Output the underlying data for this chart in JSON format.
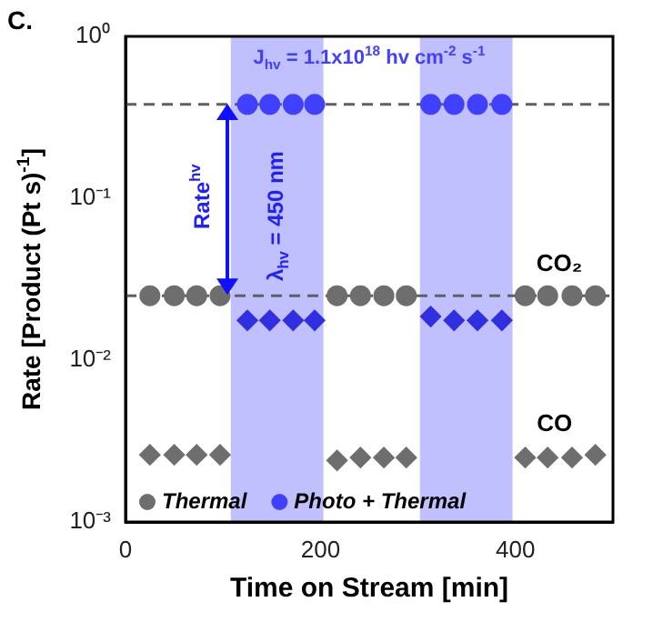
{
  "chart_data": {
    "type": "scatter",
    "title": "C.",
    "xlabel": "Time on Stream [min]",
    "ylabel": "Rate [Product (Pt s)$^{-1}$]",
    "xlim": [
      0,
      500
    ],
    "xticks": [
      0,
      200,
      400
    ],
    "ylim": [
      0.001,
      1
    ],
    "yticks": [
      {
        "value": 1,
        "label": "10⁰"
      },
      {
        "value": 0.1,
        "label": "10⁻¹"
      },
      {
        "value": 0.01,
        "label": "10⁻²"
      },
      {
        "value": 0.001,
        "label": "10⁻³"
      }
    ],
    "log": "y",
    "grid": false,
    "legend": "bottom left",
    "series": [
      {
        "name": "Thermal",
        "color": "#6e6e6e",
        "marker": "circle",
        "x": [
          25,
          50,
          73,
          97,
          217,
          241,
          265,
          288,
          410,
          433,
          458,
          482
        ],
        "values": [
          0.025,
          0.025,
          0.025,
          0.025,
          0.025,
          0.025,
          0.025,
          0.025,
          0.025,
          0.025,
          0.025,
          0.025
        ]
      },
      {
        "color": "#6e6e6e",
        "marker": "diamond",
        "x": [
          25,
          50,
          73,
          97,
          217,
          241,
          265,
          288,
          410,
          433,
          458,
          482
        ],
        "values": [
          0.0026,
          0.0026,
          0.0026,
          0.0026,
          0.0024,
          0.0025,
          0.0025,
          0.0025,
          0.0025,
          0.0025,
          0.0025,
          0.0026
        ]
      },
      {
        "name": "Photo + Thermal",
        "color": "#4040ff",
        "marker": "circle",
        "x": [
          125,
          148,
          172,
          194,
          313,
          337,
          361,
          386
        ],
        "values": [
          0.38,
          0.38,
          0.38,
          0.38,
          0.38,
          0.38,
          0.38,
          0.38
        ]
      },
      {
        "color": "#3030e0",
        "marker": "diamond",
        "x": [
          125,
          148,
          172,
          194,
          313,
          337,
          361,
          386
        ],
        "values": [
          0.0176,
          0.0176,
          0.0176,
          0.0176,
          0.0186,
          0.0176,
          0.0176,
          0.0176
        ]
      }
    ],
    "bands": [
      {
        "axis": "x",
        "from": 108,
        "to": 203,
        "color": "#c0c0ff"
      },
      {
        "axis": "x",
        "from": 302,
        "to": 397,
        "color": "#c0c0ff"
      }
    ],
    "ref_lines": [
      {
        "axis": "y",
        "value": 0.38,
        "color": "#606060",
        "line_style": "dashed"
      },
      {
        "axis": "y",
        "value": 0.025,
        "color": "#606060",
        "line_style": "dashed"
      }
    ],
    "annotations": [
      "J$_{hv}$ = 1.1x10$^{18}$ hv cm$^{-2}$ s$^{-1}$",
      "Rate$^{hv}$",
      "λ$_{hv}$ = 450 nm",
      "CO₂",
      "CO"
    ]
  }
}
